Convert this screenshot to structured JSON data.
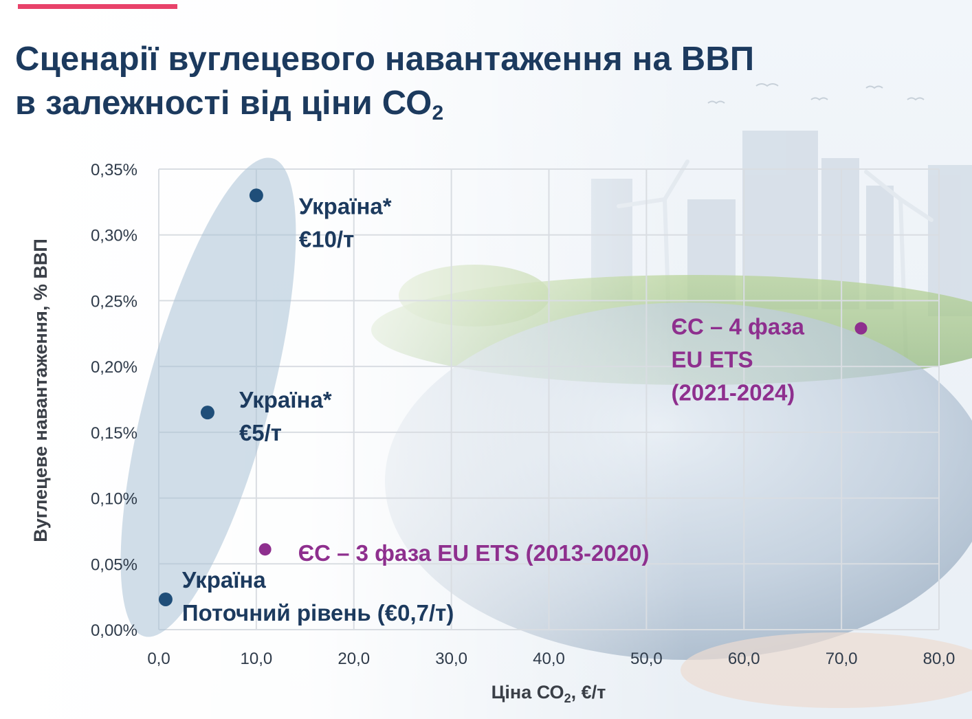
{
  "page": {
    "title_line1": "Сценарії вуглецевого навантаження на ВВП",
    "title_line2_prefix": "в залежності від ціни СО",
    "title_line2_sub": "2"
  },
  "colors": {
    "accent": "#e8426a",
    "title": "#1c3a5e",
    "ukraine": "#1f4e79",
    "eu": "#8e2f8e",
    "ellipse": "#a9c1d6"
  },
  "chart_data": {
    "type": "scatter",
    "xlabel_prefix": "Ціна СО",
    "xlabel_sub": "2",
    "xlabel_suffix": ", €/т",
    "ylabel": "Вуглецеве навантаження, % ВВП",
    "xlim": [
      0,
      80
    ],
    "ylim": [
      0,
      0.35
    ],
    "x_ticks": [
      "0,0",
      "10,0",
      "20,0",
      "30,0",
      "40,0",
      "50,0",
      "60,0",
      "70,0",
      "80,0"
    ],
    "y_ticks": [
      "0,00%",
      "0,05%",
      "0,10%",
      "0,15%",
      "0,20%",
      "0,25%",
      "0,30%",
      "0,35%"
    ],
    "grid": true,
    "series": [
      {
        "points": [
          {
            "x": 0.7,
            "y": 0.023,
            "label": [
              "Україна",
              "Поточний рівень (€0,7/т)"
            ]
          },
          {
            "x": 5,
            "y": 0.165,
            "label": [
              "Україна*",
              "€5/т"
            ]
          },
          {
            "x": 10,
            "y": 0.33,
            "label": [
              "Україна*",
              "€10/т"
            ]
          }
        ]
      },
      {
        "points": [
          {
            "x": 10.9,
            "y": 0.061,
            "label": [
              "ЄС – 3 фаза EU ETS (2013-2020)"
            ]
          },
          {
            "x": 72,
            "y": 0.229,
            "label": [
              "ЄС – 4 фаза",
              "EU ETS",
              "(2021-2024)"
            ]
          }
        ]
      }
    ]
  }
}
